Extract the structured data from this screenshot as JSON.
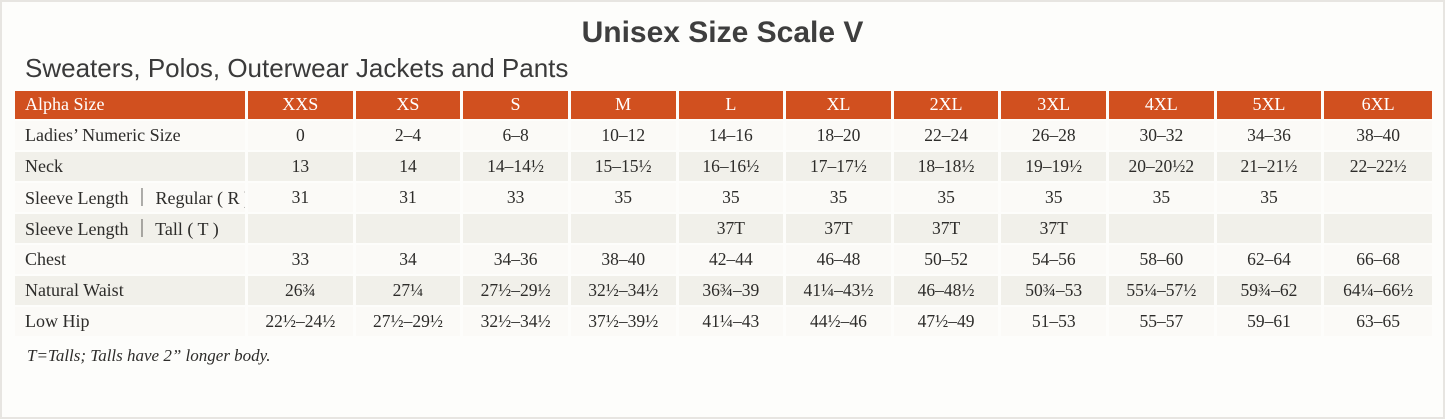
{
  "page": {
    "title": "Unisex Size Scale V",
    "subtitle": "Sweaters, Polos, Outerwear Jackets and Pants",
    "footnote": "T=Talls; Talls have 2” longer body."
  },
  "colors": {
    "header_bg": "#d1501f",
    "header_text": "#ffffff",
    "stripe_bg": "#f1f0ea",
    "row_bg": "#fbfaf7",
    "body_text": "#2d2c2a",
    "title_text": "#3e3e3e"
  },
  "table": {
    "header": [
      "Alpha Size",
      "XXS",
      "XS",
      "S",
      "M",
      "L",
      "XL",
      "2XL",
      "3XL",
      "4XL",
      "5XL",
      "6XL"
    ],
    "rows": [
      {
        "label": "Ladies’ Numeric Size",
        "values": [
          "0",
          "2–4",
          "6–8",
          "10–12",
          "14–16",
          "18–20",
          "22–24",
          "26–28",
          "30–32",
          "34–36",
          "38–40"
        ]
      },
      {
        "label": "Neck",
        "values": [
          "13",
          "14",
          "14–14½",
          "15–15½",
          "16–16½",
          "17–17½",
          "18–18½",
          "19–19½",
          "20–20½2",
          "21–21½",
          "22–22½"
        ]
      },
      {
        "label": "Sleeve Length ｜ Regular ( R )",
        "values": [
          "31",
          "31",
          "33",
          "35",
          "35",
          "35",
          "35",
          "35",
          "35",
          "35",
          ""
        ]
      },
      {
        "label": "Sleeve Length ｜ Tall ( T )",
        "values": [
          "",
          "",
          "",
          "",
          "37T",
          "37T",
          "37T",
          "37T",
          "",
          "",
          ""
        ]
      },
      {
        "label": "Chest",
        "values": [
          "33",
          "34",
          "34–36",
          "38–40",
          "42–44",
          "46–48",
          "50–52",
          "54–56",
          "58–60",
          "62–64",
          "66–68"
        ]
      },
      {
        "label": "Natural Waist",
        "values": [
          "26¾",
          "27¼",
          "27½–29½",
          "32½–34½",
          "36¾–39",
          "41¼–43½",
          "46–48½",
          "50¾–53",
          "55¼–57½",
          "59¾–62",
          "64¼–66½"
        ]
      },
      {
        "label": "Low Hip",
        "values": [
          "22½–24½",
          "27½–29½",
          "32½–34½",
          "37½–39½",
          "41¼–43",
          "44½–46",
          "47½–49",
          "51–53",
          "55–57",
          "59–61",
          "63–65"
        ]
      }
    ]
  }
}
